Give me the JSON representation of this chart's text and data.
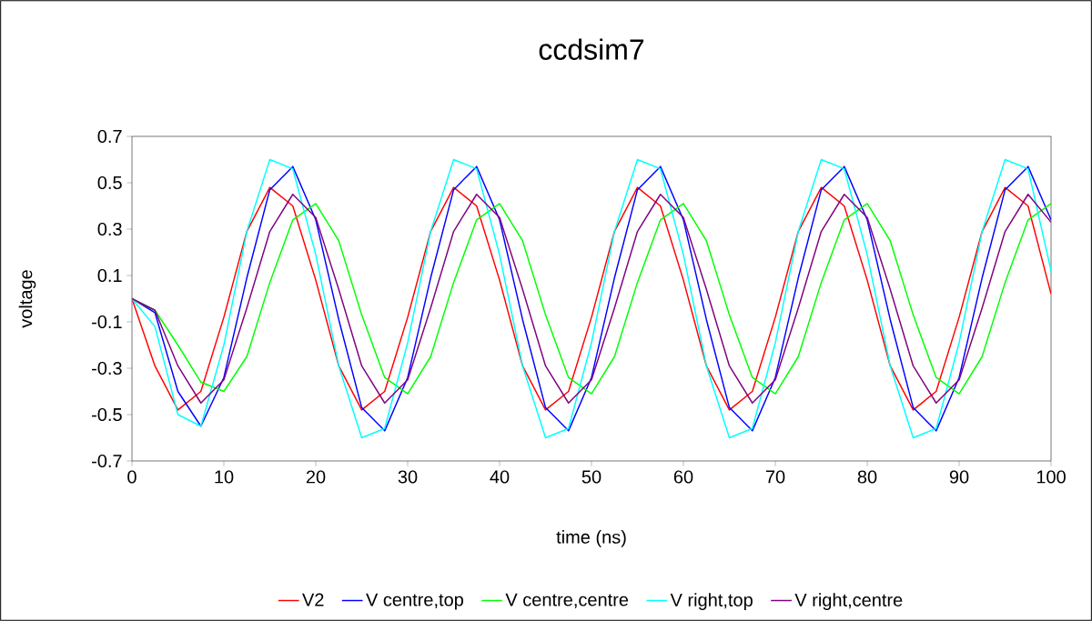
{
  "chart_data": {
    "type": "line",
    "title": "ccdsim7",
    "xlabel": "time (ns)",
    "ylabel": "voltage",
    "x": [
      0,
      2.5,
      5,
      7.5,
      10,
      12.5,
      15,
      17.5,
      20,
      22.5,
      25,
      27.5,
      30,
      32.5,
      35,
      37.5,
      40,
      42.5,
      45,
      47.5,
      50,
      52.5,
      55,
      57.5,
      60,
      62.5,
      65,
      67.5,
      70,
      72.5,
      75,
      77.5,
      80,
      82.5,
      85,
      87.5,
      90,
      92.5,
      95,
      97.5,
      100
    ],
    "series": [
      {
        "name": "V2",
        "color": "#ff0000",
        "values": [
          0,
          -0.29,
          -0.48,
          -0.4,
          -0.08,
          0.29,
          0.48,
          0.4,
          0.08,
          -0.29,
          -0.48,
          -0.4,
          -0.08,
          0.29,
          0.48,
          0.4,
          0.08,
          -0.29,
          -0.48,
          -0.4,
          -0.08,
          0.29,
          0.48,
          0.4,
          0.08,
          -0.29,
          -0.48,
          -0.4,
          -0.08,
          0.29,
          0.48,
          0.4,
          0.08,
          -0.29,
          -0.48,
          -0.4,
          -0.08,
          0.29,
          0.48,
          0.4,
          0.02
        ]
      },
      {
        "name": "V centre,top",
        "color": "#0000ff",
        "values": [
          0,
          -0.06,
          -0.4,
          -0.55,
          -0.34,
          0.09,
          0.47,
          0.57,
          0.34,
          -0.09,
          -0.47,
          -0.57,
          -0.34,
          0.09,
          0.47,
          0.57,
          0.34,
          -0.09,
          -0.47,
          -0.57,
          -0.34,
          0.09,
          0.47,
          0.57,
          0.34,
          -0.09,
          -0.47,
          -0.57,
          -0.34,
          0.09,
          0.47,
          0.57,
          0.34,
          -0.09,
          -0.47,
          -0.57,
          -0.34,
          0.09,
          0.47,
          0.57,
          0.34
        ]
      },
      {
        "name": "V centre,centre",
        "color": "#00ff00",
        "values": [
          0,
          -0.05,
          -0.2,
          -0.36,
          -0.4,
          -0.25,
          0.07,
          0.34,
          0.41,
          0.25,
          -0.07,
          -0.34,
          -0.41,
          -0.25,
          0.07,
          0.34,
          0.41,
          0.25,
          -0.07,
          -0.34,
          -0.41,
          -0.25,
          0.07,
          0.34,
          0.41,
          0.25,
          -0.07,
          -0.34,
          -0.41,
          -0.25,
          0.07,
          0.34,
          0.41,
          0.25,
          -0.07,
          -0.34,
          -0.41,
          -0.25,
          0.07,
          0.34,
          0.41
        ]
      },
      {
        "name": "V right,top",
        "color": "#00ffff",
        "values": [
          0,
          -0.12,
          -0.5,
          -0.55,
          -0.2,
          0.29,
          0.6,
          0.56,
          0.19,
          -0.29,
          -0.6,
          -0.56,
          -0.19,
          0.29,
          0.6,
          0.56,
          0.19,
          -0.29,
          -0.6,
          -0.56,
          -0.19,
          0.29,
          0.6,
          0.56,
          0.19,
          -0.29,
          -0.6,
          -0.56,
          -0.19,
          0.29,
          0.6,
          0.56,
          0.19,
          -0.29,
          -0.6,
          -0.56,
          -0.19,
          0.29,
          0.6,
          0.56,
          0.12
        ]
      },
      {
        "name": "V right,centre",
        "color": "#800080",
        "values": [
          0,
          -0.05,
          -0.29,
          -0.45,
          -0.35,
          -0.04,
          0.29,
          0.45,
          0.35,
          0.04,
          -0.29,
          -0.45,
          -0.35,
          -0.04,
          0.29,
          0.45,
          0.35,
          0.04,
          -0.29,
          -0.45,
          -0.35,
          -0.04,
          0.29,
          0.45,
          0.35,
          0.04,
          -0.29,
          -0.45,
          -0.35,
          -0.04,
          0.29,
          0.45,
          0.35,
          0.04,
          -0.29,
          -0.45,
          -0.35,
          -0.04,
          0.29,
          0.45,
          0.33
        ]
      }
    ],
    "xlim": [
      0,
      100
    ],
    "xticks": [
      0,
      10,
      20,
      30,
      40,
      50,
      60,
      70,
      80,
      90,
      100
    ],
    "ylim": [
      -0.7,
      0.7
    ],
    "yticks": [
      -0.7,
      -0.5,
      -0.3,
      -0.1,
      0.1,
      0.3,
      0.5,
      0.7
    ],
    "legend": "bottom",
    "grid": false,
    "marker": "none",
    "line_style": "solid"
  }
}
